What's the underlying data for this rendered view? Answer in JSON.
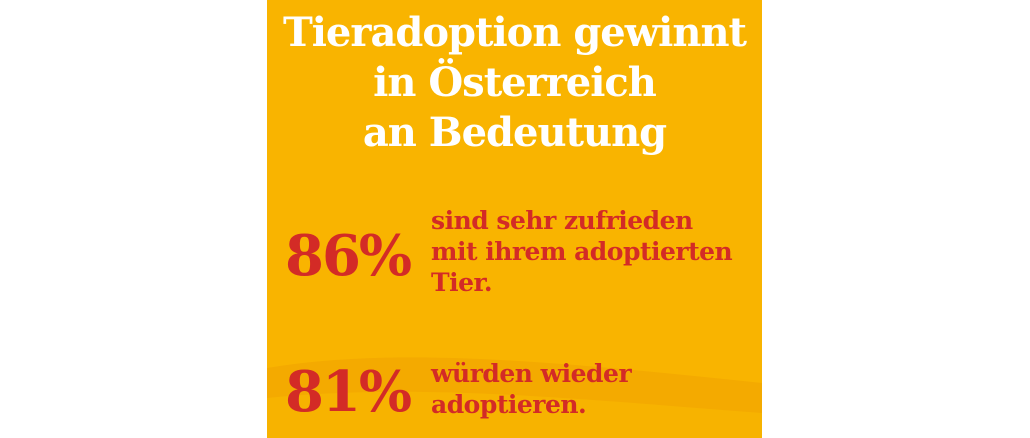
{
  "background_color": "#f9b400",
  "accent_color": "#d32b26",
  "title": {
    "lines": [
      "Tieradoption gewinnt",
      "in Österreich",
      "an Bedeutung"
    ]
  },
  "stats": [
    {
      "percent": "86%",
      "lines": [
        "sind sehr zufrieden",
        "mit ihrem adoptierten",
        "Tier."
      ]
    },
    {
      "percent": "81%",
      "lines": [
        "würden wieder",
        "adoptieren."
      ]
    }
  ]
}
